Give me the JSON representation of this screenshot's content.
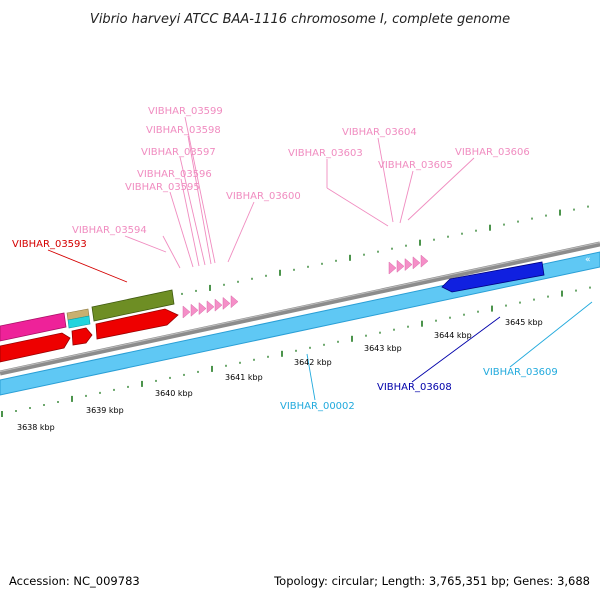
{
  "title": "Vibrio harveyi ATCC BAA-1116 chromosome I, complete genome",
  "footer": {
    "accession": "Accession: NC_009783",
    "summary": "Topology: circular; Length: 3,765,351 bp; Genes: 3,688"
  },
  "colors": {
    "label_pink": "#f08cc0",
    "label_red": "#d40000",
    "label_navy": "#0000aa",
    "label_cyan": "#22aadd",
    "backbone": "#8c8c8c",
    "cyan_track": "#66ccff",
    "tick": "#1f7a1f"
  },
  "scale_labels": [
    "3638 kbp",
    "3639 kbp",
    "3640 kbp",
    "3641 kbp",
    "3642 kbp",
    "3643 kbp",
    "3644 kbp",
    "3645 kbp"
  ],
  "gene_labels": [
    {
      "id": "VIBHAR_03599",
      "color": "pink"
    },
    {
      "id": "VIBHAR_03598",
      "color": "pink"
    },
    {
      "id": "VIBHAR_03597",
      "color": "pink"
    },
    {
      "id": "VIBHAR_03596",
      "color": "pink"
    },
    {
      "id": "VIBHAR_03595",
      "color": "pink"
    },
    {
      "id": "VIBHAR_03600",
      "color": "pink"
    },
    {
      "id": "VIBHAR_03594",
      "color": "pink"
    },
    {
      "id": "VIBHAR_03593",
      "color": "red"
    },
    {
      "id": "VIBHAR_03604",
      "color": "pink"
    },
    {
      "id": "VIBHAR_03603",
      "color": "pink"
    },
    {
      "id": "VIBHAR_03605",
      "color": "pink"
    },
    {
      "id": "VIBHAR_03606",
      "color": "pink"
    },
    {
      "id": "VIBHAR_00002",
      "color": "cyan"
    },
    {
      "id": "VIBHAR_03608",
      "color": "navy"
    },
    {
      "id": "VIBHAR_03609",
      "color": "cyan"
    }
  ]
}
